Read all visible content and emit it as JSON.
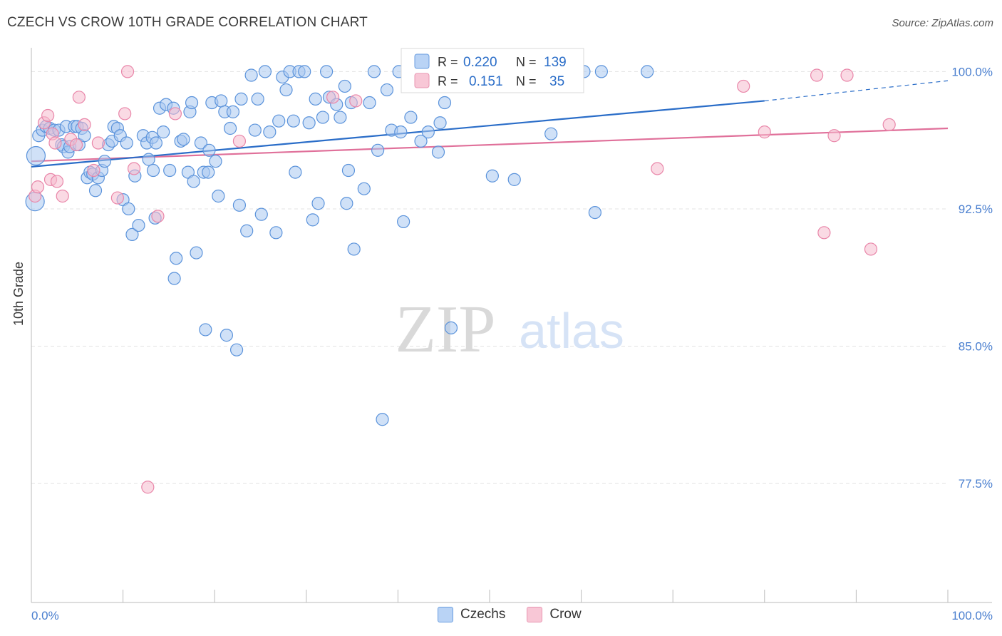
{
  "header": {
    "title": "CZECH VS CROW 10TH GRADE CORRELATION CHART",
    "source": "Source: ZipAtlas.com"
  },
  "watermark": {
    "zip": "ZIP",
    "atlas": "atlas"
  },
  "colors": {
    "czechs": "#5b93db",
    "czechs_fill": "#a9c9f1",
    "crow": "#e986a9",
    "crow_fill": "#f6bccd",
    "czechs_line": "#2a6dc8",
    "crow_line": "#e0709a",
    "tick_label": "#4a7fcf"
  },
  "legend": {
    "rows": [
      {
        "r_label": "R =",
        "r_value": "0.220",
        "n_label": "N =",
        "n_value": "139"
      },
      {
        "r_label": "R =",
        "r_value": "0.151",
        "n_label": "N =",
        "n_value": "35"
      }
    ],
    "bottom": [
      "Czechs",
      "Crow"
    ]
  },
  "chart_data": {
    "type": "scatter",
    "title": "CZECH VS CROW 10TH GRADE CORRELATION CHART",
    "xlabel": "",
    "ylabel": "10th Grade",
    "xlim": [
      0,
      100
    ],
    "ylim": [
      71,
      101.3
    ],
    "x_tick_labels": [
      "0.0%",
      "100.0%"
    ],
    "y_ticks": [
      77.5,
      85.0,
      92.5,
      100.0
    ],
    "y_tick_labels": [
      "77.5%",
      "85.0%",
      "92.5%",
      "100.0%"
    ],
    "grid": true,
    "legend_position": "top-center",
    "series": [
      {
        "name": "Czechs",
        "r": 0.22,
        "n": 139,
        "trend": {
          "x0": 0,
          "y0": 94.8,
          "x1": 80,
          "y1": 98.4,
          "dashed_to": [
            100,
            99.5
          ]
        },
        "points": [
          [
            0.8,
            96.5
          ],
          [
            1.2,
            96.8
          ],
          [
            1.6,
            97
          ],
          [
            2,
            96.9
          ],
          [
            2.5,
            96.8
          ],
          [
            3,
            96.8
          ],
          [
            3.3,
            96
          ],
          [
            3.5,
            95.9
          ],
          [
            4,
            95.6
          ],
          [
            4.2,
            95.9
          ],
          [
            3.8,
            97
          ],
          [
            4.7,
            97
          ],
          [
            5,
            97
          ],
          [
            5.2,
            96
          ],
          [
            5.5,
            96.9
          ],
          [
            5.8,
            96.5
          ],
          [
            6.1,
            94.2
          ],
          [
            6.4,
            94.5
          ],
          [
            6.7,
            94.4
          ],
          [
            7,
            93.5
          ],
          [
            7.3,
            94.2
          ],
          [
            7.7,
            94.6
          ],
          [
            8,
            95.1
          ],
          [
            8.4,
            96
          ],
          [
            8.8,
            96.2
          ],
          [
            9,
            97
          ],
          [
            9.4,
            96.9
          ],
          [
            9.7,
            96.5
          ],
          [
            10,
            93
          ],
          [
            10.4,
            96.1
          ],
          [
            10.6,
            92.5
          ],
          [
            11,
            91.1
          ],
          [
            11.3,
            94.3
          ],
          [
            11.7,
            91.6
          ],
          [
            12.2,
            96.5
          ],
          [
            12.6,
            96.1
          ],
          [
            12.8,
            95.2
          ],
          [
            13.2,
            96.4
          ],
          [
            13.5,
            92
          ],
          [
            13.3,
            94.6
          ],
          [
            13.6,
            96.1
          ],
          [
            14,
            98
          ],
          [
            14.4,
            96.7
          ],
          [
            14.7,
            98.2
          ],
          [
            15.1,
            94.6
          ],
          [
            15.6,
            88.7
          ],
          [
            15.5,
            98
          ],
          [
            15.8,
            89.8
          ],
          [
            16.3,
            96.2
          ],
          [
            16.6,
            96.3
          ],
          [
            17.1,
            94.5
          ],
          [
            17.3,
            97.8
          ],
          [
            17.5,
            98.3
          ],
          [
            17.7,
            94
          ],
          [
            18,
            90.1
          ],
          [
            18.5,
            96.1
          ],
          [
            18.8,
            94.5
          ],
          [
            19,
            85.9
          ],
          [
            19.3,
            94.5
          ],
          [
            19.4,
            95.7
          ],
          [
            19.7,
            98.3
          ],
          [
            20.1,
            95.1
          ],
          [
            20.4,
            93.2
          ],
          [
            20.7,
            98.4
          ],
          [
            21.1,
            97.8
          ],
          [
            21.3,
            85.6
          ],
          [
            21.7,
            96.9
          ],
          [
            22,
            97.8
          ],
          [
            22.4,
            84.8
          ],
          [
            22.7,
            92.7
          ],
          [
            22.9,
            98.5
          ],
          [
            23.5,
            91.3
          ],
          [
            24,
            99.8
          ],
          [
            24.4,
            96.8
          ],
          [
            24.7,
            98.5
          ],
          [
            25.1,
            92.2
          ],
          [
            25.5,
            100
          ],
          [
            26,
            96.7
          ],
          [
            26.7,
            91.2
          ],
          [
            27,
            97.3
          ],
          [
            27.4,
            99.7
          ],
          [
            27.8,
            99
          ],
          [
            28.2,
            100
          ],
          [
            28.6,
            97.3
          ],
          [
            28.8,
            94.5
          ],
          [
            29.2,
            100
          ],
          [
            29.8,
            100
          ],
          [
            30.3,
            97.2
          ],
          [
            30.7,
            91.9
          ],
          [
            31,
            98.5
          ],
          [
            31.3,
            92.8
          ],
          [
            31.8,
            97.5
          ],
          [
            32.2,
            100
          ],
          [
            32.5,
            98.6
          ],
          [
            33.3,
            98.2
          ],
          [
            33.7,
            97.5
          ],
          [
            34.2,
            99.2
          ],
          [
            34.4,
            92.8
          ],
          [
            34.6,
            94.6
          ],
          [
            34.9,
            98.3
          ],
          [
            35.2,
            90.3
          ],
          [
            36.3,
            93.6
          ],
          [
            36.9,
            98.3
          ],
          [
            37.4,
            100
          ],
          [
            37.8,
            95.7
          ],
          [
            38.3,
            81
          ],
          [
            38.8,
            99
          ],
          [
            39.3,
            96.8
          ],
          [
            40.3,
            96.7
          ],
          [
            40.6,
            91.8
          ],
          [
            40.1,
            100
          ],
          [
            41.4,
            97.5
          ],
          [
            42,
            100
          ],
          [
            42.5,
            96.2
          ],
          [
            43.3,
            96.7
          ],
          [
            43.8,
            100
          ],
          [
            44.4,
            95.6
          ],
          [
            44.6,
            97.2
          ],
          [
            45.1,
            98.3
          ],
          [
            45.8,
            86
          ],
          [
            46.4,
            100
          ],
          [
            47.4,
            100
          ],
          [
            50.3,
            94.3
          ],
          [
            52.7,
            94.1
          ],
          [
            53.7,
            100
          ],
          [
            56.7,
            96.6
          ],
          [
            60.3,
            100
          ],
          [
            61.5,
            92.3
          ],
          [
            62.2,
            100
          ],
          [
            67.2,
            100
          ]
        ],
        "large_points": [
          [
            0.5,
            95.4
          ],
          [
            0.4,
            92.9
          ]
        ]
      },
      {
        "name": "Crow",
        "r": 0.151,
        "n": 35,
        "trend": {
          "x0": 0,
          "y0": 95.1,
          "x1": 100,
          "y1": 96.9
        },
        "points": [
          [
            0.4,
            93.2
          ],
          [
            0.7,
            93.7
          ],
          [
            1.4,
            97.2
          ],
          [
            1.8,
            97.6
          ],
          [
            2.1,
            94.1
          ],
          [
            2.3,
            96.6
          ],
          [
            2.6,
            96.1
          ],
          [
            2.8,
            94
          ],
          [
            3.4,
            93.2
          ],
          [
            4.3,
            96.3
          ],
          [
            4.9,
            96
          ],
          [
            5.2,
            98.6
          ],
          [
            5.8,
            97.1
          ],
          [
            6.8,
            94.6
          ],
          [
            7.3,
            96.1
          ],
          [
            9.4,
            93.1
          ],
          [
            10.2,
            97.7
          ],
          [
            10.5,
            100
          ],
          [
            11.2,
            94.7
          ],
          [
            12.7,
            77.3
          ],
          [
            13.8,
            92.1
          ],
          [
            15.7,
            97.7
          ],
          [
            22.7,
            96.2
          ],
          [
            32.9,
            98.6
          ],
          [
            35.4,
            98.4
          ],
          [
            68.3,
            94.7
          ],
          [
            77.7,
            99.2
          ],
          [
            80,
            96.7
          ],
          [
            85.7,
            99.8
          ],
          [
            86.5,
            91.2
          ],
          [
            87.6,
            96.5
          ],
          [
            89,
            99.8
          ],
          [
            91.6,
            90.3
          ],
          [
            93.6,
            97.1
          ]
        ]
      }
    ]
  }
}
